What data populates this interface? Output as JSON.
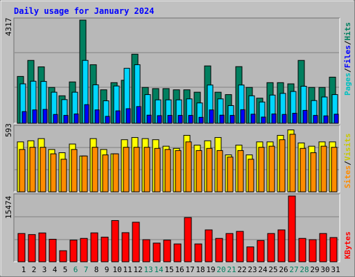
{
  "chart_data": [
    {
      "type": "bar",
      "title": "Daily usage for January 2024",
      "panel": "hits-files-pages",
      "ymax_label": "4317",
      "ylim": [
        0,
        4317
      ],
      "categories": [
        "1",
        "2",
        "3",
        "4",
        "5",
        "6",
        "7",
        "8",
        "9",
        "10",
        "11",
        "12",
        "13",
        "14",
        "15",
        "16",
        "17",
        "18",
        "19",
        "20",
        "21",
        "22",
        "23",
        "24",
        "25",
        "26",
        "27",
        "28",
        "29",
        "30",
        "31"
      ],
      "weekend_days": [
        "6",
        "7",
        "13",
        "14",
        "20",
        "21",
        "27",
        "28"
      ],
      "series": [
        {
          "name": "Hits",
          "color": "#007f5f",
          "values": [
            1960,
            2630,
            2360,
            1500,
            1150,
            1730,
            4317,
            2450,
            1400,
            1700,
            1800,
            2890,
            1500,
            1450,
            1450,
            1400,
            1400,
            1300,
            2400,
            1300,
            1200,
            2370,
            1500,
            1050,
            1700,
            1700,
            1650,
            2630,
            1500,
            1500,
            1930
          ]
        },
        {
          "name": "Files",
          "color": "#00d7ff",
          "values": [
            1650,
            1760,
            1750,
            1300,
            990,
            1300,
            2630,
            1610,
            940,
            1560,
            2300,
            2450,
            1200,
            980,
            980,
            980,
            1020,
            850,
            1600,
            1020,
            740,
            1600,
            1150,
            890,
            1180,
            1250,
            1330,
            1550,
            950,
            1100,
            1200
          ]
        },
        {
          "name": "Pages",
          "color": "#0000ff",
          "values": [
            490,
            560,
            580,
            370,
            330,
            390,
            780,
            560,
            290,
            520,
            610,
            700,
            340,
            320,
            330,
            330,
            330,
            250,
            560,
            340,
            330,
            570,
            380,
            260,
            390,
            370,
            420,
            540,
            330,
            310,
            380
          ]
        }
      ]
    },
    {
      "type": "bar",
      "panel": "visits-sites",
      "ymax_label": "593",
      "ylim": [
        0,
        593
      ],
      "categories": [
        "1",
        "2",
        "3",
        "4",
        "5",
        "6",
        "7",
        "8",
        "9",
        "10",
        "11",
        "12",
        "13",
        "14",
        "15",
        "16",
        "17",
        "18",
        "19",
        "20",
        "21",
        "22",
        "23",
        "24",
        "25",
        "26",
        "27",
        "28",
        "29",
        "30",
        "31"
      ],
      "series": [
        {
          "name": "Visits",
          "color": "#ffff00",
          "values": [
            460,
            470,
            490,
            390,
            360,
            440,
            330,
            490,
            390,
            350,
            480,
            500,
            490,
            480,
            420,
            400,
            520,
            430,
            470,
            500,
            340,
            430,
            340,
            460,
            460,
            520,
            570,
            450,
            420,
            460,
            460
          ]
        },
        {
          "name": "Sites",
          "color": "#ff8c00",
          "values": [
            390,
            410,
            410,
            350,
            300,
            390,
            330,
            410,
            340,
            350,
            410,
            410,
            410,
            400,
            390,
            380,
            460,
            380,
            400,
            380,
            320,
            380,
            300,
            410,
            420,
            480,
            530,
            400,
            360,
            420,
            410
          ]
        }
      ]
    },
    {
      "type": "bar",
      "panel": "kbytes",
      "ymax_label": "15474",
      "ylim": [
        0,
        15474
      ],
      "categories": [
        "1",
        "2",
        "3",
        "4",
        "5",
        "6",
        "7",
        "8",
        "9",
        "10",
        "11",
        "12",
        "13",
        "14",
        "15",
        "16",
        "17",
        "18",
        "19",
        "20",
        "21",
        "22",
        "23",
        "24",
        "25",
        "26",
        "27",
        "28",
        "29",
        "30",
        "31"
      ],
      "series": [
        {
          "name": "KBytes",
          "color": "#ff0000",
          "values": [
            6650,
            6400,
            6780,
            5300,
            2600,
            5100,
            5500,
            6800,
            5800,
            9700,
            6850,
            9300,
            5200,
            4400,
            5100,
            4200,
            10400,
            4200,
            7500,
            5500,
            6650,
            7150,
            3500,
            5000,
            6650,
            7500,
            15474,
            5500,
            5200,
            6650,
            5700
          ]
        }
      ]
    }
  ],
  "legend_top": [
    {
      "label": "Pages",
      "color": "#00c0c0"
    },
    {
      "label": "Files",
      "color": "#0000ff"
    },
    {
      "label": "Hits",
      "color": "#007f5f"
    }
  ],
  "legend_mid": [
    {
      "label": "Sites",
      "color": "#ff8c00"
    },
    {
      "label": "Visits",
      "color": "#c8c800"
    }
  ],
  "legend_bottom": [
    {
      "label": "KBytes",
      "color": "#ff0000"
    }
  ],
  "legend_separator": "/",
  "colors": {
    "title": "#0000ff",
    "weekday_label": "#000000",
    "weekend_label": "#00805f",
    "background": "#c0c0c0",
    "plot_bg": "#b8b8b8"
  }
}
